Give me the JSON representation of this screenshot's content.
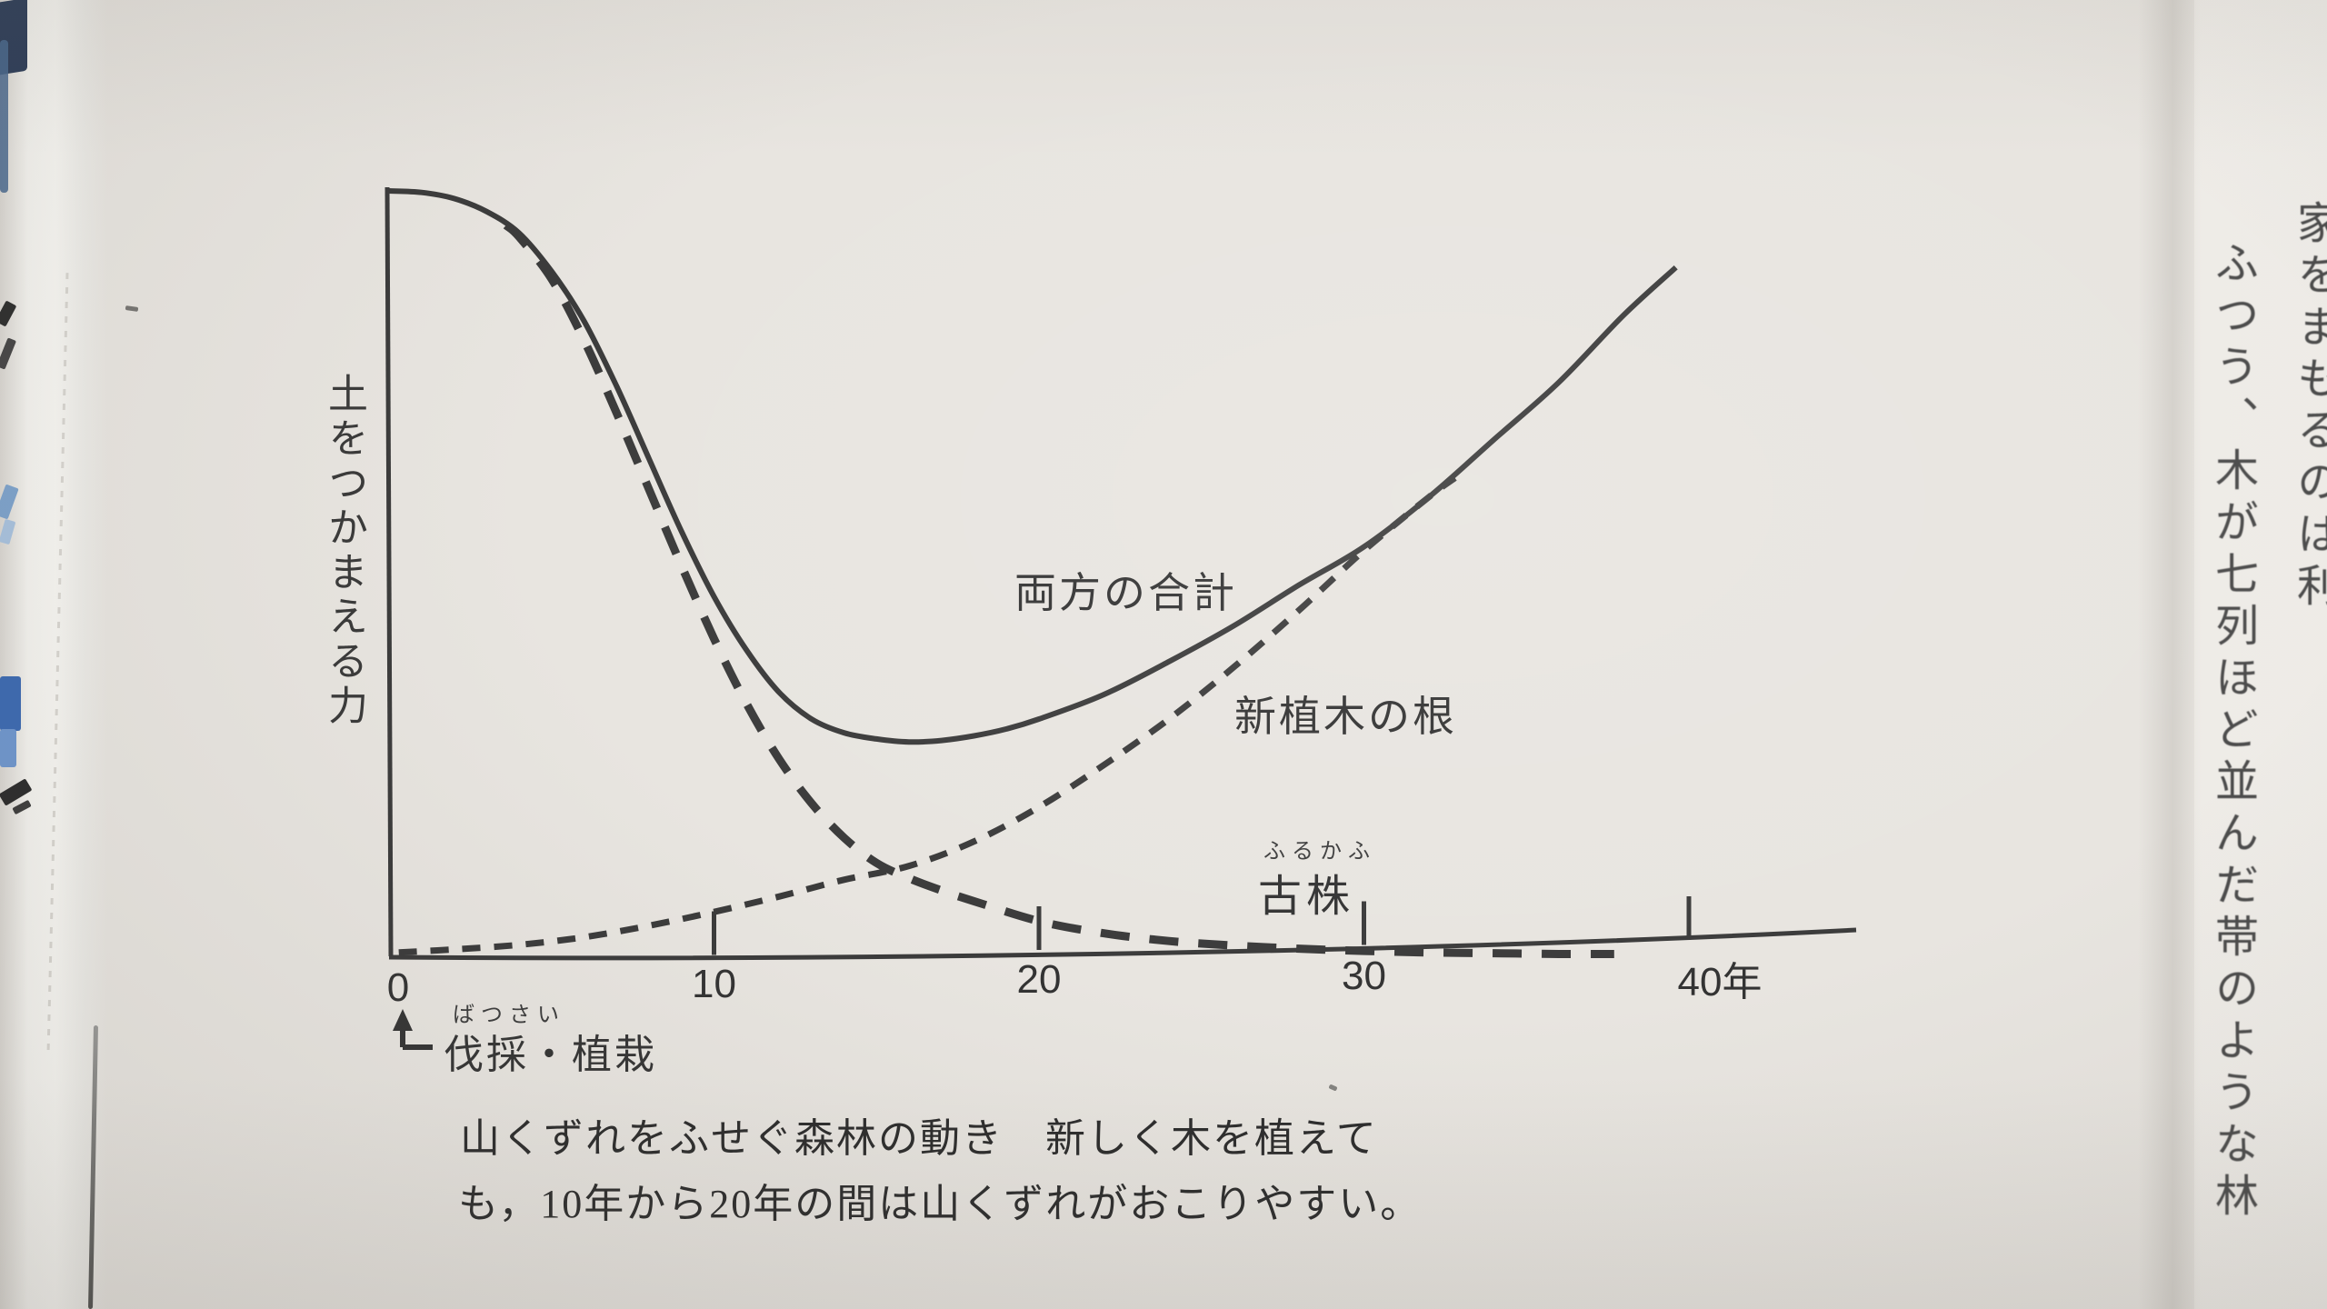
{
  "page": {
    "type": "photographed textbook page with hand-drawn chart",
    "caption_line1": "山くずれをふせぐ森林の動き　新しく木を植えて",
    "caption_line2": "も，10年から20年の間は山くずれがおこりやすい。",
    "adjacent_page_text_col1": "家をまもるのは利",
    "adjacent_page_text_col2": "ふつう、木が七列ほど並んだ帯のような林"
  },
  "chart_data": {
    "type": "line",
    "title": "",
    "ylabel": "土をつかまえる力",
    "x_unit": "年",
    "x_range": [
      0,
      45
    ],
    "y_range": [
      0,
      1
    ],
    "grid": false,
    "legend_position": "inline-labels",
    "x_ticks": [
      {
        "label": "0",
        "year": 0,
        "tick": false
      },
      {
        "label": "10",
        "year": 10,
        "tick": true
      },
      {
        "label": "20",
        "year": 20,
        "tick": true
      },
      {
        "label": "30",
        "year": 30,
        "tick": true
      },
      {
        "label": "40年",
        "year": 40,
        "tick": true
      }
    ],
    "annotation": {
      "label": "伐採・植栽",
      "furigana": "ばつさい",
      "year": 0
    },
    "series": [
      {
        "name": "両方の合計",
        "line": "solid",
        "x": [
          0,
          1,
          2,
          3,
          4,
          5,
          6,
          7,
          8,
          9,
          10,
          11,
          12,
          13,
          14,
          15,
          16,
          17,
          18,
          19,
          20,
          22,
          24,
          26,
          28,
          30,
          32,
          34,
          36,
          38,
          39.6
        ],
        "y": [
          1.0,
          0.998,
          0.99,
          0.973,
          0.945,
          0.895,
          0.83,
          0.745,
          0.65,
          0.555,
          0.47,
          0.4,
          0.345,
          0.31,
          0.292,
          0.284,
          0.28,
          0.282,
          0.288,
          0.297,
          0.31,
          0.342,
          0.385,
          0.432,
          0.485,
          0.535,
          0.6,
          0.675,
          0.75,
          0.838,
          0.9
        ]
      },
      {
        "name": "新植木の根",
        "line": "short-dash",
        "x": [
          0.3,
          2,
          4,
          6,
          8,
          10,
          12,
          14,
          16,
          18,
          20,
          22,
          24,
          26,
          28,
          30,
          32,
          32.8
        ],
        "y": [
          0.005,
          0.009,
          0.015,
          0.025,
          0.04,
          0.058,
          0.078,
          0.1,
          0.118,
          0.15,
          0.195,
          0.25,
          0.31,
          0.378,
          0.452,
          0.53,
          0.6,
          0.625
        ]
      },
      {
        "name": "古株",
        "furigana": "ふるかふ",
        "line": "long-dash",
        "x": [
          3.6,
          4,
          5,
          6,
          7,
          8,
          9,
          10,
          11,
          12,
          13,
          14,
          15,
          16,
          17,
          18,
          20,
          22,
          24,
          26,
          28,
          30,
          32,
          34,
          36,
          37.7
        ],
        "y": [
          0.955,
          0.94,
          0.885,
          0.805,
          0.71,
          0.61,
          0.51,
          0.415,
          0.33,
          0.258,
          0.2,
          0.155,
          0.122,
          0.102,
          0.086,
          0.072,
          0.046,
          0.03,
          0.02,
          0.014,
          0.01,
          0.007,
          0.005,
          0.004,
          0.003,
          0.003
        ]
      }
    ]
  }
}
